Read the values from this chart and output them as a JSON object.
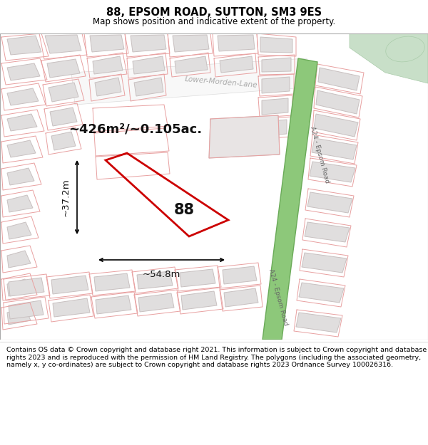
{
  "title": "88, EPSOM ROAD, SUTTON, SM3 9ES",
  "subtitle": "Map shows position and indicative extent of the property.",
  "footer": "Contains OS data © Crown copyright and database right 2021. This information is subject to Crown copyright and database rights 2023 and is reproduced with the permission of HM Land Registry. The polygons (including the associated geometry, namely x, y co-ordinates) are subject to Crown copyright and database rights 2023 Ordnance Survey 100026316.",
  "map_bg": "#f2f0eb",
  "title_area_bg": "#ffffff",
  "footer_area_bg": "#ffffff",
  "road_green_color": "#8dc87a",
  "road_green_border": "#6aaa58",
  "property_outline_color": "#cc0000",
  "area_label": "~426m²/~0.105ac.",
  "width_label": "~54.8m",
  "height_label": "~37.2m",
  "number_label": "88",
  "block_color": "#e0dede",
  "block_border": "#c8c0c0",
  "road_outline_color": "#e8a0a0",
  "park_color": "#c8dfc8",
  "white_area_color": "#f8f8f8",
  "lane_label_color": "#aaaaaa",
  "road_label_color": "#666666"
}
